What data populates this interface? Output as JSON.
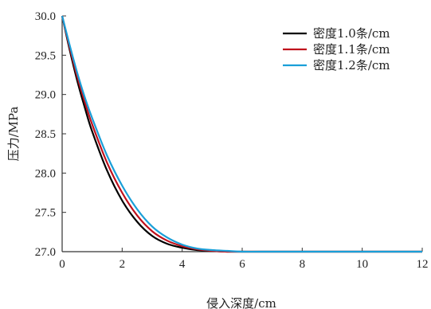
{
  "chart_data": {
    "type": "line",
    "title": "",
    "xlabel": "侵入深度/cm",
    "ylabel": "压力/MPa",
    "xlim": [
      0,
      12
    ],
    "ylim": [
      27.0,
      30.0
    ],
    "xticks": [
      "0",
      "2",
      "4",
      "6",
      "8",
      "10",
      "12"
    ],
    "yticks": [
      "30.0",
      "29.5",
      "29.0",
      "28.5",
      "28.0",
      "27.5",
      "27.0"
    ],
    "grid": false,
    "legend_position": "top-right",
    "series": [
      {
        "name": "密度1.0条/cm",
        "color": "#000000",
        "x": [
          0,
          0.25,
          0.5,
          0.75,
          1,
          1.5,
          2,
          2.5,
          3,
          3.5,
          4,
          4.5,
          5,
          5.5,
          6,
          7,
          8,
          9,
          10,
          11,
          12
        ],
        "y": [
          30.0,
          29.57,
          29.18,
          28.84,
          28.53,
          28.03,
          27.65,
          27.38,
          27.2,
          27.1,
          27.05,
          27.02,
          27.01,
          27.0,
          27.0,
          27.0,
          27.0,
          27.0,
          27.0,
          27.0,
          27.0
        ]
      },
      {
        "name": "密度1.1条/cm",
        "color": "#c0101c",
        "x": [
          0,
          0.25,
          0.5,
          0.75,
          1,
          1.5,
          2,
          2.5,
          3,
          3.5,
          4,
          4.5,
          5,
          5.5,
          6,
          7,
          8,
          9,
          10,
          11,
          12
        ],
        "y": [
          30.0,
          29.6,
          29.23,
          28.91,
          28.62,
          28.13,
          27.75,
          27.46,
          27.26,
          27.14,
          27.07,
          27.03,
          27.01,
          27.0,
          27.0,
          27.0,
          27.0,
          27.0,
          27.0,
          27.0,
          27.0
        ]
      },
      {
        "name": "密度1.2条/cm",
        "color": "#1a9fd8",
        "x": [
          0,
          0.25,
          0.5,
          0.75,
          1,
          1.5,
          2,
          2.5,
          3,
          3.5,
          4,
          4.5,
          5,
          5.5,
          6,
          7,
          8,
          9,
          10,
          11,
          12
        ],
        "y": [
          30.0,
          29.63,
          29.28,
          28.97,
          28.7,
          28.22,
          27.84,
          27.54,
          27.32,
          27.18,
          27.09,
          27.04,
          27.02,
          27.01,
          27.0,
          27.0,
          27.0,
          27.0,
          27.0,
          27.0,
          27.0
        ]
      }
    ]
  }
}
